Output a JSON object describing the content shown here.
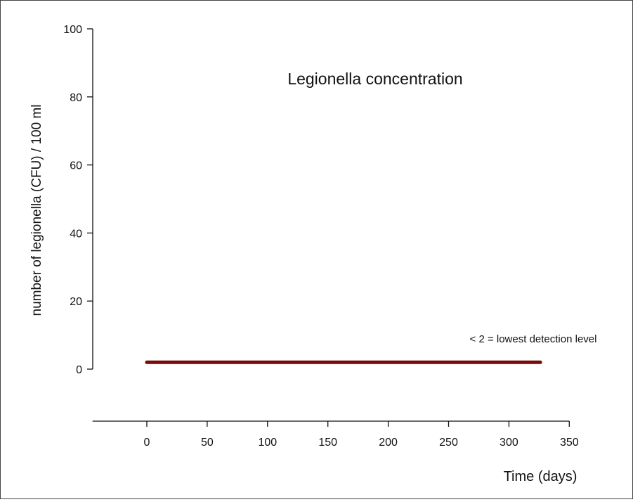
{
  "chart_data": {
    "type": "line",
    "title": "Legionella concentration",
    "xlabel": "Time (days)",
    "ylabel": "number of legionella (CFU) / 100 ml",
    "annotation": "< 2 = lowest detection level",
    "xlim": [
      -45,
      350
    ],
    "ylim": [
      0,
      100
    ],
    "xticks": [
      0,
      50,
      100,
      150,
      200,
      250,
      300,
      350
    ],
    "yticks": [
      0,
      20,
      40,
      60,
      80,
      100
    ],
    "grid": false,
    "series": [
      {
        "color": "#7a0a0a",
        "x": [
          0,
          326
        ],
        "y": [
          2,
          2
        ]
      }
    ]
  }
}
